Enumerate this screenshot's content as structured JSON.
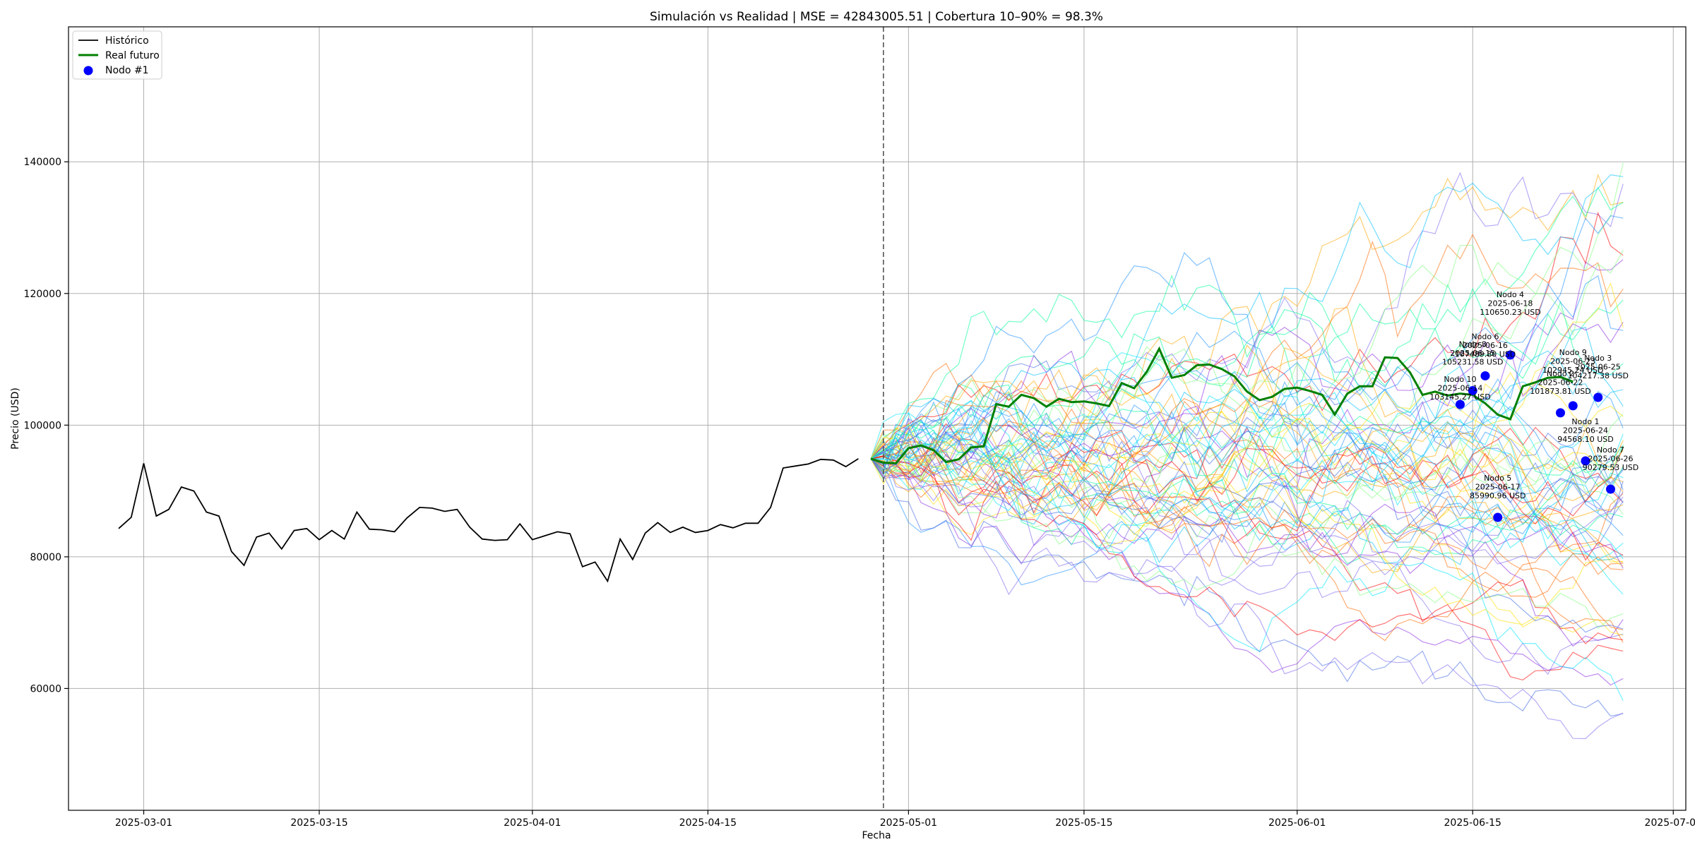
{
  "chart_data": {
    "type": "line",
    "title": "Simulación vs Realidad | MSE = 42843005.51 | Cobertura 10–90% = 98.3%",
    "xlabel": "Fecha",
    "ylabel": "Precio (USD)",
    "xlim": [
      "2025-02-23",
      "2025-07-02"
    ],
    "ylim": [
      41500,
      160500
    ],
    "grid": true,
    "legend_position": "top-left",
    "x_ticks": [
      "2025-03-01",
      "2025-03-15",
      "2025-04-01",
      "2025-04-15",
      "2025-05-01",
      "2025-05-15",
      "2025-06-01",
      "2025-06-15",
      "2025-07-01"
    ],
    "y_ticks": [
      60000,
      80000,
      100000,
      120000,
      140000
    ],
    "forecast_start": "2025-04-29",
    "legend": [
      {
        "label": "Histórico",
        "kind": "line",
        "color": "#000000"
      },
      {
        "label": "Real futuro",
        "kind": "line",
        "color": "#008000"
      },
      {
        "label": "Nodo #1",
        "kind": "dot",
        "color": "#0000ff"
      }
    ],
    "historical": {
      "name": "Histórico",
      "color": "#000000",
      "start": "2025-02-27",
      "values": [
        84300,
        86000,
        94200,
        86200,
        87200,
        90600,
        90000,
        86800,
        86200,
        80800,
        78700,
        83000,
        83600,
        81200,
        84000,
        84300,
        82600,
        84000,
        82700,
        86800,
        84200,
        84100,
        83800,
        85900,
        87500,
        87400,
        86900,
        87200,
        84500,
        82700,
        82500,
        82600,
        85000,
        82600,
        83200,
        83800,
        83500,
        78500,
        79200,
        76300,
        82700,
        79600,
        83600,
        85200,
        83700,
        84500,
        83700,
        84000,
        84900,
        84400,
        85100,
        85100,
        87500,
        93500,
        93800,
        94100,
        94800,
        94700,
        93700,
        94900
      ]
    },
    "real_future": {
      "name": "Real futuro",
      "color": "#008000",
      "start": "2025-04-28",
      "values": [
        94900,
        94300,
        94200,
        96500,
        96900,
        96200,
        94400,
        94800,
        96600,
        96800,
        103200,
        102800,
        104600,
        104100,
        102800,
        104000,
        103500,
        103600,
        103300,
        102900,
        106400,
        105600,
        108100,
        111600,
        107200,
        107600,
        109100,
        109200,
        108500,
        107400,
        105100,
        103800,
        104300,
        105500,
        105700,
        105200,
        104600,
        101600,
        104800,
        105900,
        105900,
        110300,
        110200,
        108000,
        104600,
        105100,
        104500,
        104800,
        104600,
        103300,
        101600,
        100900,
        105900,
        106500,
        107200,
        107300,
        106600
      ]
    },
    "simulated_paths": {
      "count": 70,
      "start": "2025-04-28",
      "steps": 60,
      "start_value": 94900,
      "palette": [
        "#ff0000",
        "#ff6a00",
        "#ffa500",
        "#ffdf00",
        "#7fff7f",
        "#00ff99",
        "#00e5ff",
        "#00bfff",
        "#1e90ff",
        "#4169e1",
        "#7b68ee",
        "#8a2be2"
      ]
    },
    "nodes": [
      {
        "label": "Nodo 1",
        "date": "2025-06-24",
        "value_text": "94568.10 USD",
        "value": 94568.1
      },
      {
        "label": "Nodo 2",
        "date": "2025-06-22",
        "value_text": "101873.81 USD",
        "value": 101873.81
      },
      {
        "label": "Nodo 3",
        "date": "2025-06-25",
        "value_text": "104217.38 USD",
        "value": 104217.38
      },
      {
        "label": "Nodo 4",
        "date": "2025-06-18",
        "value_text": "110650.23 USD",
        "value": 110650.23
      },
      {
        "label": "Nodo 5",
        "date": "2025-06-17",
        "value_text": "85990.96 USD",
        "value": 85990.96
      },
      {
        "label": "Nodo 6",
        "date": "2025-06-16",
        "value_text": "107489.80 USD",
        "value": 107489.8
      },
      {
        "label": "Nodo 7",
        "date": "2025-06-26",
        "value_text": "90279.53 USD",
        "value": 90279.53
      },
      {
        "label": "Nodo 8",
        "date": "2025-06-15",
        "value_text": "105231.58 USD",
        "value": 105231.58
      },
      {
        "label": "Nodo 9",
        "date": "2025-06-23",
        "value_text": "102945.24 USD",
        "value": 102945.24
      },
      {
        "label": "Nodo 10",
        "date": "2025-06-14",
        "value_text": "103145.27 USD",
        "value": 103145.27
      }
    ]
  }
}
